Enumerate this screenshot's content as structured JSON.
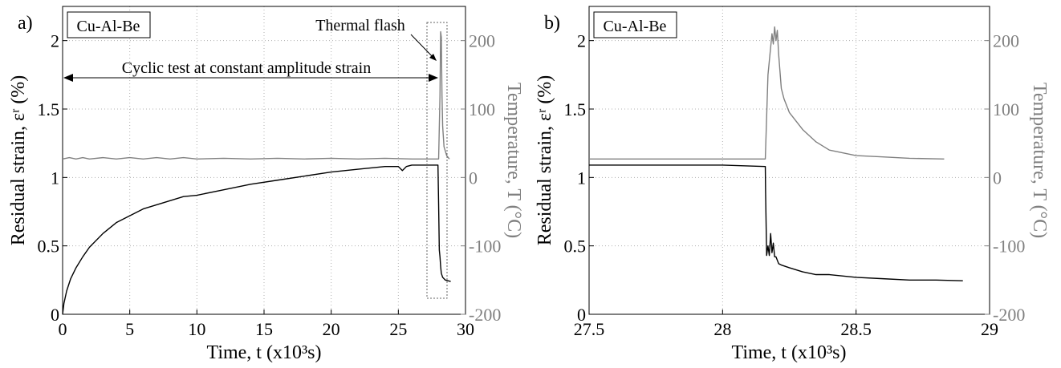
{
  "colors": {
    "strain": "#000000",
    "temperature": "#808080",
    "grid": "#b0b0b0"
  },
  "chart_data": [
    {
      "panel_label": "a)",
      "type": "line",
      "title": "",
      "material_label": "Cu-Al-Be",
      "xlabel": "Time, t (x10³s)",
      "ylabel": "Residual strain, εʳ (%)",
      "y2label": "Temperature, T (°C)",
      "xlim": [
        0,
        30
      ],
      "ylim": [
        0,
        2.25
      ],
      "y2lim": [
        -200,
        250
      ],
      "xticks": [
        "0",
        "5",
        "10",
        "15",
        "20",
        "25",
        "30"
      ],
      "yticks": [
        "0",
        "0.5",
        "1",
        "1.5",
        "2"
      ],
      "y2ticks": [
        "-200",
        "-100",
        "0",
        "100",
        "200"
      ],
      "grid": true,
      "annotations": {
        "thermal_flash": "Thermal flash",
        "cyclic_test": "Cyclic test at constant amplitude strain"
      },
      "series": [
        {
          "name": "Residual strain",
          "axis": "left",
          "x": [
            0,
            0.1,
            0.3,
            0.6,
            1,
            1.5,
            2,
            3,
            4,
            5,
            6,
            7,
            8,
            9,
            10,
            12,
            14,
            16,
            18,
            20,
            22,
            24,
            25,
            25.3,
            25.6,
            26,
            27,
            27.95,
            28.0,
            28.05,
            28.1,
            28.15,
            28.2,
            28.3,
            28.5,
            28.7,
            28.9
          ],
          "values": [
            0,
            0.08,
            0.17,
            0.26,
            0.34,
            0.42,
            0.49,
            0.59,
            0.67,
            0.72,
            0.77,
            0.8,
            0.83,
            0.86,
            0.87,
            0.91,
            0.95,
            0.98,
            1.01,
            1.04,
            1.06,
            1.08,
            1.08,
            1.05,
            1.08,
            1.09,
            1.09,
            1.09,
            0.8,
            0.47,
            0.42,
            0.35,
            0.3,
            0.27,
            0.25,
            0.245,
            0.24
          ]
        },
        {
          "name": "Temperature",
          "axis": "right",
          "x": [
            0,
            0.5,
            1,
            1.5,
            2,
            3,
            4,
            5,
            6,
            7,
            8,
            9,
            10,
            12,
            14,
            16,
            18,
            20,
            22,
            24,
            26,
            27,
            28.0,
            28.1,
            28.15,
            28.2,
            28.25,
            28.3,
            28.4,
            28.6,
            28.8
          ],
          "values": [
            27,
            29,
            27,
            29,
            27,
            29,
            27,
            29,
            27,
            29,
            27,
            29,
            27,
            28,
            27,
            28,
            27,
            28,
            27,
            28,
            27,
            27,
            27,
            120,
            213,
            205,
            120,
            75,
            45,
            32,
            27
          ]
        }
      ]
    },
    {
      "panel_label": "b)",
      "type": "line",
      "title": "",
      "material_label": "Cu-Al-Be",
      "xlabel": "Time, t (x10³s)",
      "ylabel": "Residual strain, εʳ (%)",
      "y2label": "Temperature, T (°C)",
      "xlim": [
        27.5,
        29
      ],
      "ylim": [
        0,
        2.25
      ],
      "y2lim": [
        -200,
        250
      ],
      "xticks": [
        "27.5",
        "28",
        "28.5",
        "29"
      ],
      "yticks": [
        "0",
        "0.5",
        "1",
        "1.5",
        "2"
      ],
      "y2ticks": [
        "-200",
        "-100",
        "0",
        "100",
        "200"
      ],
      "grid": true,
      "series": [
        {
          "name": "Residual strain",
          "axis": "left",
          "x": [
            27.5,
            28.0,
            28.16,
            28.161,
            28.165,
            28.17,
            28.175,
            28.18,
            28.185,
            28.19,
            28.195,
            28.2,
            28.21,
            28.22,
            28.25,
            28.3,
            28.35,
            28.4,
            28.5,
            28.6,
            28.7,
            28.8,
            28.9
          ],
          "values": [
            1.09,
            1.09,
            1.08,
            0.9,
            0.43,
            0.5,
            0.43,
            0.59,
            0.45,
            0.52,
            0.42,
            0.42,
            0.37,
            0.36,
            0.34,
            0.31,
            0.29,
            0.29,
            0.27,
            0.26,
            0.25,
            0.25,
            0.245
          ]
        },
        {
          "name": "Temperature",
          "axis": "right",
          "x": [
            27.5,
            27.9,
            28.16,
            28.17,
            28.18,
            28.185,
            28.19,
            28.195,
            28.2,
            28.205,
            28.21,
            28.22,
            28.23,
            28.25,
            28.3,
            28.35,
            28.4,
            28.5,
            28.6,
            28.7,
            28.83
          ],
          "values": [
            27,
            27,
            27,
            150,
            190,
            210,
            195,
            220,
            200,
            215,
            180,
            130,
            115,
            95,
            70,
            52,
            40,
            32,
            30,
            28,
            27
          ]
        }
      ]
    }
  ]
}
